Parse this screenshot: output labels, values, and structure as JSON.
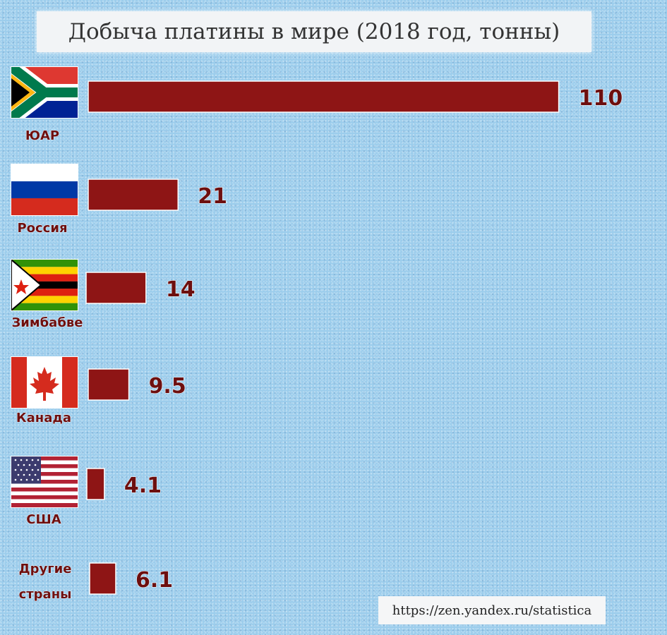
{
  "chart_data": {
    "type": "bar",
    "orientation": "horizontal",
    "title": "Добыча платины в мире (2018 год, тонны)",
    "categories": [
      "ЮАР",
      "Россия",
      "Зимбабве",
      "Канада",
      "США",
      "Другие страны"
    ],
    "values": [
      110,
      21,
      14,
      9.5,
      4.1,
      6.1
    ],
    "value_labels": [
      "110",
      "21",
      "14",
      "9.5",
      "4.1",
      "6.1"
    ],
    "bar_color": "#8e1515",
    "label_color": "#6d0f0f"
  },
  "source": "https://zen.yandex.ru/statistica",
  "flags": [
    {
      "country": "ЮАР",
      "icon": "south-africa-flag-icon"
    },
    {
      "country": "Россия",
      "icon": "russia-flag-icon"
    },
    {
      "country": "Зимбабве",
      "icon": "zimbabwe-flag-icon"
    },
    {
      "country": "Канада",
      "icon": "canada-flag-icon"
    },
    {
      "country": "США",
      "icon": "usa-flag-icon"
    }
  ],
  "background_color": "#9ccdec"
}
